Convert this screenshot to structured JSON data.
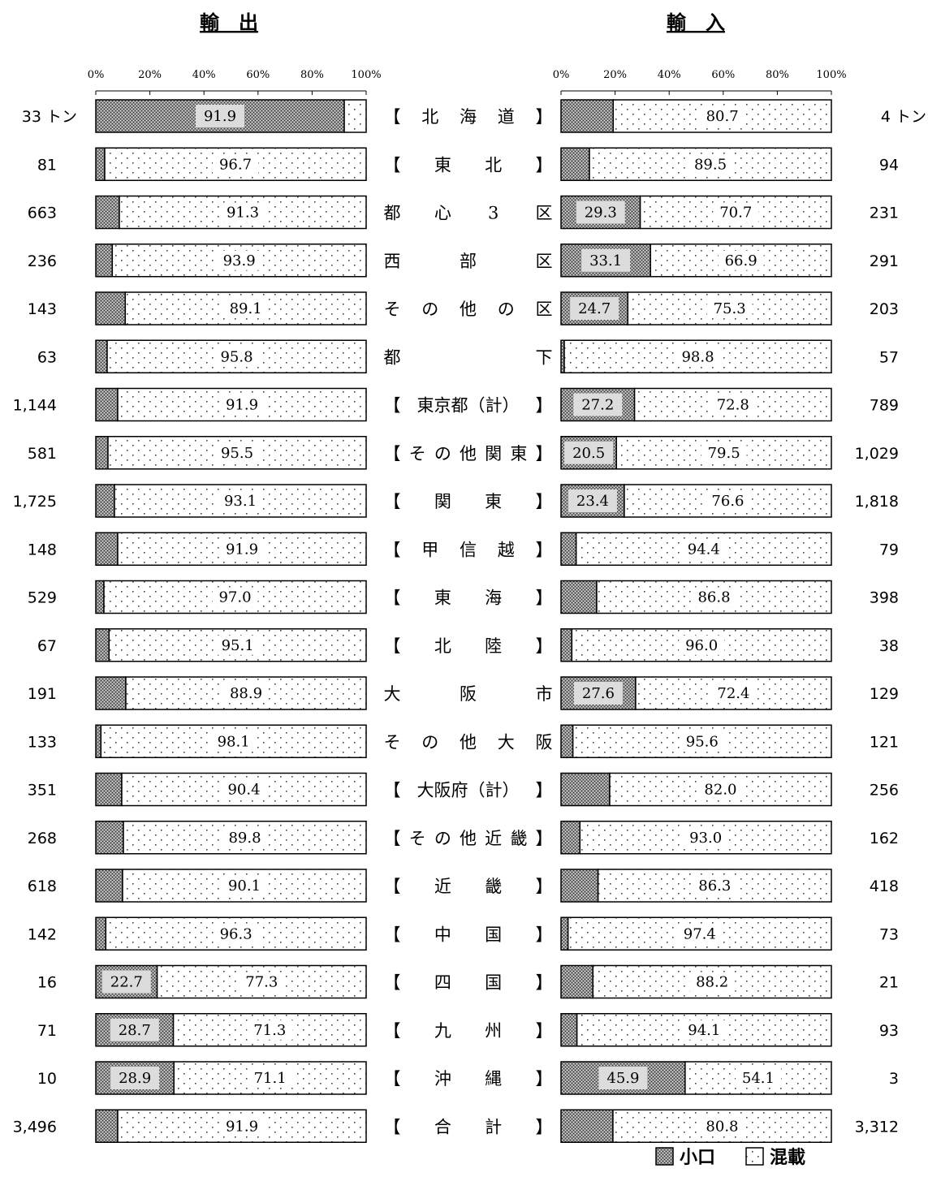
{
  "colors": {
    "small_lot_shade": "#9a9a9a",
    "mixed_fill": "#ffffff",
    "label_box": "#dcdcdc",
    "stroke": "#000000"
  },
  "chart_data": {
    "type": "bar",
    "stacked": "100%",
    "ticks": [
      "0%",
      "20%",
      "40%",
      "60%",
      "80%",
      "100%"
    ],
    "unit": "トン",
    "legend": [
      {
        "name": "小口",
        "pattern": "dark-dotted"
      },
      {
        "name": "混載",
        "pattern": "white-dotted"
      }
    ],
    "legend_position": "bottom-right",
    "categories": [
      "【北海道】",
      "【東北】",
      "都心3区",
      "西部区",
      "その他の区",
      "都下",
      "【東京都(計)】",
      "【その他関東】",
      "【関東】",
      "【甲信越】",
      "【東海】",
      "【北陸】",
      "大阪市",
      "その他大阪",
      "【大阪府(計)】",
      "【その他近畿】",
      "【近畿】",
      "【中国】",
      "【四国】",
      "【九州】",
      "【沖縄】",
      "【合計】"
    ],
    "category_labels": [
      {
        "l": "【",
        "m": [
          "北",
          "海",
          "道"
        ],
        "r": "】"
      },
      {
        "l": "【",
        "m": [
          "東",
          "北"
        ],
        "r": "】"
      },
      {
        "l": "都",
        "m": [
          "心",
          "3"
        ],
        "r": "区"
      },
      {
        "l": "西",
        "m": [
          "部"
        ],
        "r": "区"
      },
      {
        "l": "そ",
        "m": [
          "の",
          "他",
          "の"
        ],
        "r": "区"
      },
      {
        "l": "都",
        "m": [],
        "r": "下"
      },
      {
        "l": "【",
        "m": [
          "東京都（計）"
        ],
        "r": "】"
      },
      {
        "l": "【",
        "m": [
          "そ",
          "の",
          "他",
          "関",
          "東"
        ],
        "r": "】"
      },
      {
        "l": "【",
        "m": [
          "関",
          "東"
        ],
        "r": "】"
      },
      {
        "l": "【",
        "m": [
          "甲",
          "信",
          "越"
        ],
        "r": "】"
      },
      {
        "l": "【",
        "m": [
          "東",
          "海"
        ],
        "r": "】"
      },
      {
        "l": "【",
        "m": [
          "北",
          "陸"
        ],
        "r": "】"
      },
      {
        "l": "大",
        "m": [
          "阪"
        ],
        "r": "市"
      },
      {
        "l": "そ",
        "m": [
          "の",
          "他",
          "大"
        ],
        "r": "阪"
      },
      {
        "l": "【",
        "m": [
          "大阪府（計）"
        ],
        "r": "】"
      },
      {
        "l": "【",
        "m": [
          "そ",
          "の",
          "他",
          "近",
          "畿"
        ],
        "r": "】"
      },
      {
        "l": "【",
        "m": [
          "近",
          "畿"
        ],
        "r": "】"
      },
      {
        "l": "【",
        "m": [
          "中",
          "国"
        ],
        "r": "】"
      },
      {
        "l": "【",
        "m": [
          "四",
          "国"
        ],
        "r": "】"
      },
      {
        "l": "【",
        "m": [
          "九",
          "州"
        ],
        "r": "】"
      },
      {
        "l": "【",
        "m": [
          "沖",
          "縄"
        ],
        "r": "】"
      },
      {
        "l": "【",
        "m": [
          "合",
          "計"
        ],
        "r": "】"
      }
    ],
    "panels": [
      {
        "title": "輸出",
        "tonnage": [
          "33",
          "81",
          "663",
          "236",
          "143",
          "63",
          "1,144",
          "581",
          "1,725",
          "148",
          "529",
          "67",
          "191",
          "133",
          "351",
          "268",
          "618",
          "142",
          "16",
          "71",
          "10",
          "3,496"
        ],
        "series": [
          {
            "name": "小口",
            "values": [
              91.9,
              3.3,
              8.7,
              6.1,
              10.9,
              4.2,
              8.1,
              4.5,
              6.9,
              8.1,
              3.0,
              4.9,
              11.1,
              1.9,
              9.6,
              10.2,
              9.9,
              3.7,
              22.7,
              28.7,
              28.9,
              8.1
            ]
          },
          {
            "name": "混載",
            "values": [
              8.1,
              96.7,
              91.3,
              93.9,
              89.1,
              95.8,
              91.9,
              95.5,
              93.1,
              91.9,
              97.0,
              95.1,
              88.9,
              98.1,
              90.4,
              89.8,
              90.1,
              96.3,
              77.3,
              71.3,
              71.1,
              91.9
            ]
          }
        ],
        "small_labels": [
          "91.9",
          "",
          "",
          "",
          "",
          "",
          "",
          "",
          "",
          "",
          "",
          "",
          "",
          "",
          "",
          "",
          "",
          "",
          "22.7",
          "28.7",
          "28.9",
          ""
        ],
        "mixed_labels": [
          "",
          "96.7",
          "91.3",
          "93.9",
          "89.1",
          "95.8",
          "91.9",
          "95.5",
          "93.1",
          "91.9",
          "97.0",
          "95.1",
          "88.9",
          "98.1",
          "90.4",
          "89.8",
          "90.1",
          "96.3",
          "77.3",
          "71.3",
          "71.1",
          "91.9"
        ]
      },
      {
        "title": "輸入",
        "tonnage": [
          "4",
          "94",
          "231",
          "291",
          "203",
          "57",
          "789",
          "1,029",
          "1,818",
          "79",
          "398",
          "38",
          "129",
          "121",
          "256",
          "162",
          "418",
          "73",
          "21",
          "93",
          "3",
          "3,312"
        ],
        "series": [
          {
            "name": "小口",
            "values": [
              19.3,
              10.5,
              29.3,
              33.1,
              24.7,
              1.2,
              27.2,
              20.5,
              23.4,
              5.6,
              13.2,
              4.0,
              27.6,
              4.4,
              18.0,
              7.0,
              13.7,
              2.6,
              11.8,
              5.9,
              45.9,
              19.2
            ]
          },
          {
            "name": "混載",
            "values": [
              80.7,
              89.5,
              70.7,
              66.9,
              75.3,
              98.8,
              72.8,
              79.5,
              76.6,
              94.4,
              86.8,
              96.0,
              72.4,
              95.6,
              82.0,
              93.0,
              86.3,
              97.4,
              88.2,
              94.1,
              54.1,
              80.8
            ]
          }
        ],
        "small_labels": [
          "",
          "",
          "29.3",
          "33.1",
          "24.7",
          "",
          "27.2",
          "20.5",
          "23.4",
          "",
          "",
          "",
          "27.6",
          "",
          "",
          "",
          "",
          "",
          "",
          "",
          "45.9",
          ""
        ],
        "mixed_labels": [
          "80.7",
          "89.5",
          "70.7",
          "66.9",
          "75.3",
          "98.8",
          "72.8",
          "79.5",
          "76.6",
          "94.4",
          "86.8",
          "96.0",
          "72.4",
          "95.6",
          "82.0",
          "93.0",
          "86.3",
          "97.4",
          "88.2",
          "94.1",
          "54.1",
          "80.8"
        ]
      }
    ]
  }
}
